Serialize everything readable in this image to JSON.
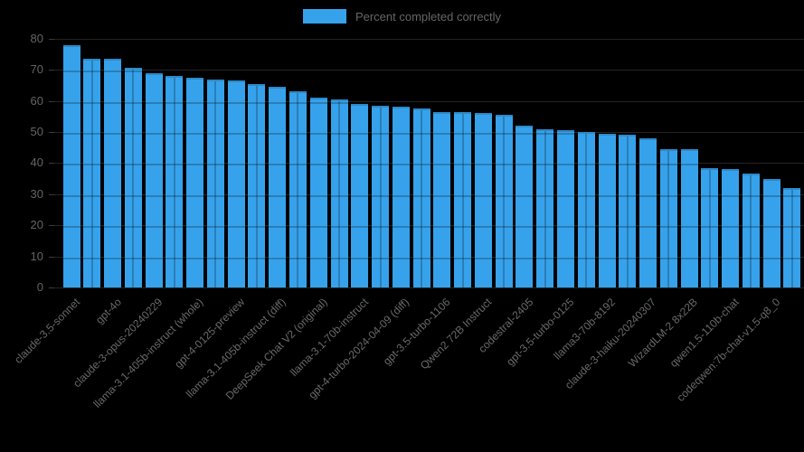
{
  "page": {
    "background": "#000000"
  },
  "legend": {
    "label": "Percent completed correctly",
    "swatch_color": "#36a2eb",
    "position": "top"
  },
  "chart_data": {
    "type": "bar",
    "title": "",
    "xlabel": "",
    "ylabel": "",
    "legend_entries": [
      "Percent completed correctly"
    ],
    "ylim": [
      0,
      80
    ],
    "yticks": [
      0,
      10,
      20,
      30,
      40,
      50,
      60,
      70,
      80
    ],
    "grid": true,
    "bar_color": "#36a2eb",
    "gridline_color_over_bars": "rgba(0,0,0,0.22)",
    "values": [
      78,
      73.5,
      73.5,
      70.5,
      69,
      68,
      67.5,
      67,
      66.5,
      65.5,
      64.5,
      63,
      61,
      60.5,
      59,
      58.5,
      58,
      57.5,
      56.5,
      56.5,
      56,
      55.5,
      52,
      51,
      50.5,
      50,
      49.5,
      49,
      48,
      44.5,
      44.5,
      38.5,
      38,
      36.5,
      35,
      32
    ],
    "x_tick_labels": [
      "claude-3.5-sonnet",
      "gpt-4o",
      "claude-3-opus-20240229",
      "llama-3.1-405b-instruct (whole)",
      "gpt-4-0125-preview",
      "llama-3.1-405b-instruct (diff)",
      "DeepSeek Chat V2 (original)",
      "llama-3.1-70b-instruct",
      "gpt-4-turbo-2024-04-09 (diff)",
      "gpt-3.5-turbo-1106",
      "Qwen2 72B Instruct",
      "codestral-2405",
      "gpt-3.5-turbo-0125",
      "llama3-70b-8192",
      "claude-3-haiku-20240307",
      "WizardLM-2 8x22B",
      "qwen1.5-110b-chat",
      "codeqwen:7b-chat-v1.5-q8_0"
    ],
    "x_labels_shown_every": 2,
    "x_labels_start_index": 0
  }
}
